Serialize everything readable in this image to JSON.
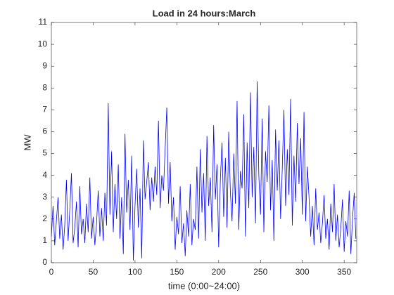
{
  "chart_data": {
    "type": "line",
    "title": "Load in 24 hours:March",
    "x_label": "time (0:00~24:00)",
    "y_label": "MW",
    "x": [
      0,
      2,
      4,
      6,
      8,
      10,
      12,
      14,
      16,
      18,
      20,
      22,
      24,
      26,
      28,
      30,
      32,
      34,
      36,
      38,
      40,
      42,
      44,
      46,
      48,
      50,
      52,
      54,
      56,
      58,
      60,
      62,
      64,
      66,
      68,
      70,
      72,
      74,
      76,
      78,
      80,
      82,
      84,
      86,
      88,
      90,
      92,
      94,
      96,
      98,
      100,
      102,
      104,
      106,
      108,
      110,
      112,
      114,
      116,
      118,
      120,
      122,
      124,
      126,
      128,
      130,
      132,
      134,
      136,
      138,
      140,
      142,
      144,
      146,
      148,
      150,
      152,
      154,
      156,
      158,
      160,
      162,
      164,
      166,
      168,
      170,
      172,
      174,
      176,
      178,
      180,
      182,
      184,
      186,
      188,
      190,
      192,
      194,
      196,
      198,
      200,
      202,
      204,
      206,
      208,
      210,
      212,
      214,
      216,
      218,
      220,
      222,
      224,
      226,
      228,
      230,
      232,
      234,
      236,
      238,
      240,
      242,
      244,
      246,
      248,
      250,
      252,
      254,
      256,
      258,
      260,
      262,
      264,
      266,
      268,
      270,
      272,
      274,
      276,
      278,
      280,
      282,
      284,
      286,
      288,
      290,
      292,
      294,
      296,
      298,
      300,
      302,
      304,
      306,
      308,
      310,
      312,
      314,
      316,
      318,
      320,
      322,
      324,
      326,
      328,
      330,
      332,
      334,
      336,
      338,
      340,
      342,
      344,
      346,
      348,
      350,
      352,
      354,
      356,
      358,
      360,
      362,
      364
    ],
    "series": [
      {
        "name": "load",
        "color": "#0000ff",
        "values": [
          1.2,
          2.6,
          0.8,
          1.9,
          3.0,
          1.1,
          2.2,
          0.6,
          1.7,
          3.8,
          1.0,
          2.4,
          4.1,
          0.9,
          1.6,
          2.8,
          0.7,
          3.5,
          1.3,
          2.0,
          0.9,
          2.7,
          1.4,
          3.9,
          1.1,
          2.1,
          0.8,
          1.8,
          3.3,
          1.2,
          2.5,
          1.0,
          3.2,
          1.7,
          7.3,
          2.2,
          5.1,
          1.4,
          3.6,
          2.0,
          4.5,
          1.1,
          3.0,
          0.4,
          5.9,
          2.3,
          3.8,
          1.5,
          4.9,
          0.1,
          2.6,
          4.3,
          1.6,
          3.4,
          0.2,
          5.6,
          2.9,
          3.7,
          4.6,
          2.4,
          3.9,
          2.8,
          4.4,
          3.1,
          6.5,
          2.5,
          4.0,
          3.3,
          5.2,
          7.1,
          2.7,
          4.6,
          1.9,
          3.0,
          0.6,
          2.1,
          1.3,
          3.5,
          0.9,
          1.8,
          0.3,
          2.4,
          1.2,
          3.6,
          0.8,
          2.0,
          1.5,
          4.4,
          1.1,
          5.2,
          2.3,
          4.1,
          1.0,
          5.8,
          2.6,
          3.9,
          1.4,
          6.3,
          2.9,
          4.5,
          0.7,
          3.8,
          5.5,
          2.1,
          4.8,
          1.6,
          6.0,
          3.2,
          1.9,
          5.0,
          2.7,
          7.4,
          1.5,
          4.2,
          3.4,
          6.8,
          1.2,
          5.5,
          2.5,
          7.8,
          3.0,
          5.3,
          1.8,
          8.3,
          4.0,
          2.2,
          6.6,
          1.4,
          5.1,
          3.7,
          7.2,
          2.4,
          4.7,
          1.0,
          6.1,
          3.3,
          5.6,
          2.0,
          4.3,
          7.0,
          2.6,
          5.2,
          3.1,
          7.5,
          1.7,
          4.9,
          2.8,
          6.4,
          3.6,
          5.7,
          2.2,
          6.9,
          1.9,
          4.4,
          3.0,
          1.2,
          2.6,
          0.8,
          3.4,
          1.5,
          2.3,
          0.9,
          1.8,
          3.1,
          1.1,
          2.0,
          0.6,
          2.7,
          1.4,
          3.6,
          1.0,
          2.2,
          0.7,
          1.6,
          2.9,
          0.5,
          1.9,
          1.2,
          3.3,
          0.4,
          2.0,
          3.2,
          1.1
        ]
      }
    ],
    "xlim": [
      0,
      365
    ],
    "xticks": [
      0,
      50,
      100,
      150,
      200,
      250,
      300,
      350
    ],
    "ylim": [
      0,
      11
    ],
    "yticks": [
      0,
      1,
      2,
      3,
      4,
      5,
      6,
      7,
      8,
      9,
      10,
      11
    ]
  }
}
